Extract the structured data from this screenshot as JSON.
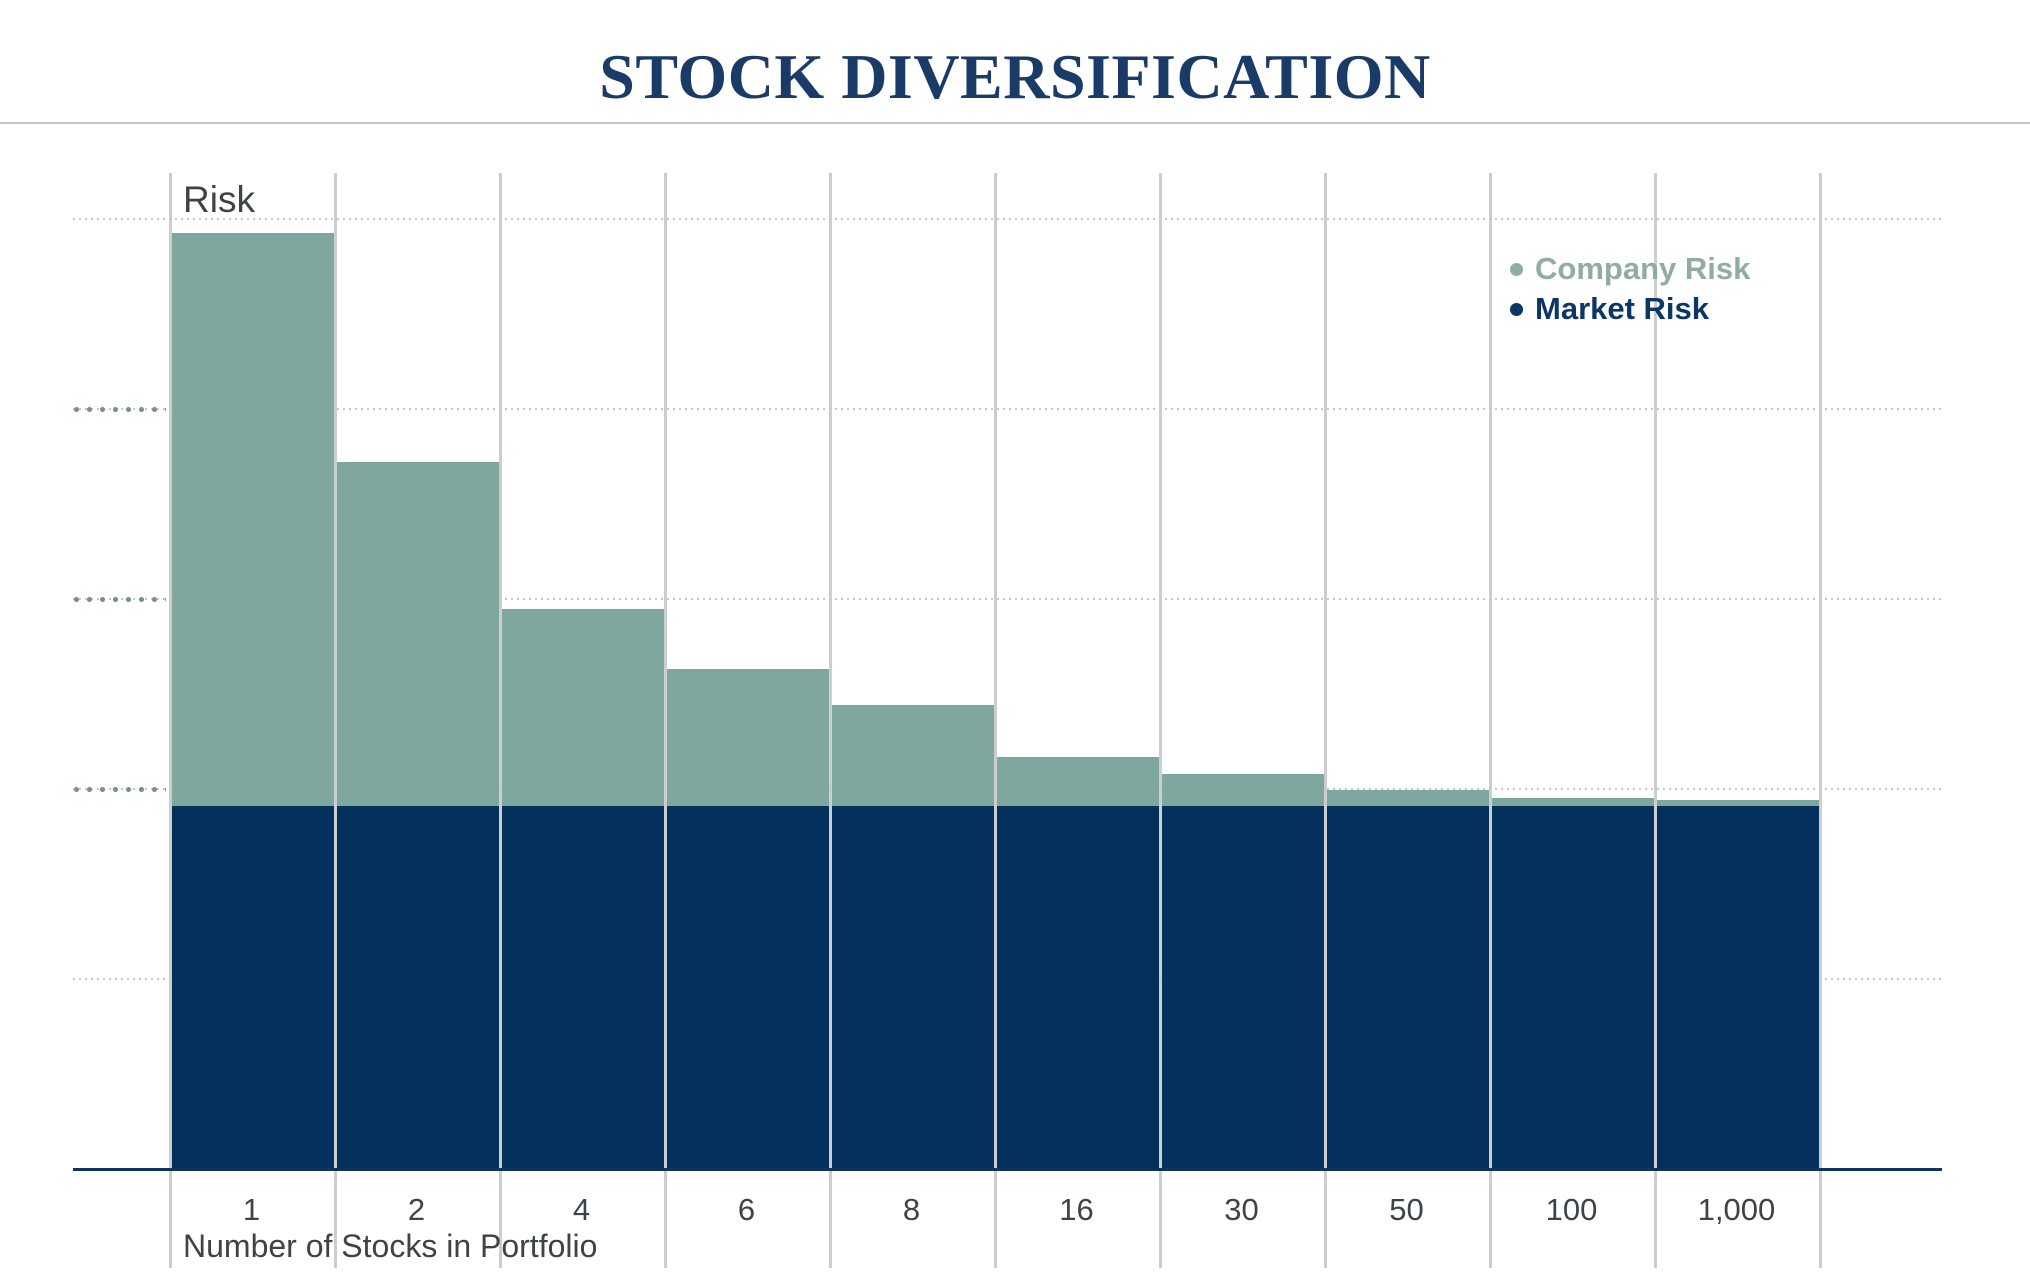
{
  "legend": {
    "items": [
      {
        "label": "Company Risk",
        "text_color": "#8FACA6",
        "bullet_color": "#8FACA6"
      },
      {
        "label": "Market Risk",
        "text_color": "#0C3666",
        "bullet_color": "#0C3666"
      }
    ]
  },
  "colors": {
    "title": "#1A3A68",
    "separator": "#C6C6C6",
    "vertical_gridline": "#CBCDCE",
    "dotted_gridline": "#C7C7C7",
    "margin_tick_dots": "#7A8E99",
    "axis_text": "#3E4347",
    "baseline": "#0D335E",
    "company_risk": "#7FA7A0",
    "market_risk": "#03305C"
  },
  "chart_data": {
    "type": "bar",
    "stacked": true,
    "title": "STOCK DIVERSIFICATION",
    "ylabel": "Risk",
    "xlabel": "Number of Stocks in Portfolio",
    "categories": [
      "1",
      "2",
      "4",
      "6",
      "8",
      "16",
      "30",
      "50",
      "100",
      "1,000"
    ],
    "series": [
      {
        "name": "Market Risk",
        "color": "#03305C",
        "values": [
          38.8,
          38.8,
          38.8,
          38.8,
          38.8,
          38.8,
          38.8,
          38.8,
          38.8,
          38.8
        ]
      },
      {
        "name": "Company Risk",
        "color": "#7FA7A0",
        "values": [
          61.2,
          36.7,
          21.0,
          14.6,
          10.8,
          5.2,
          3.4,
          1.7,
          0.9,
          0.6
        ]
      }
    ],
    "y_units": "relative risk (index, tallest bar = 100)",
    "ylim": [
      0,
      106.4
    ],
    "grid": {
      "vertical_gridlines": true,
      "dotted_y_values": [
        20.3,
        40.6,
        60.9,
        81.2,
        101.5
      ],
      "margin_tick_y_values": [
        40.6,
        60.9,
        81.2
      ]
    },
    "legend_position": "top-right",
    "y_axis_numeric_labels": false
  }
}
